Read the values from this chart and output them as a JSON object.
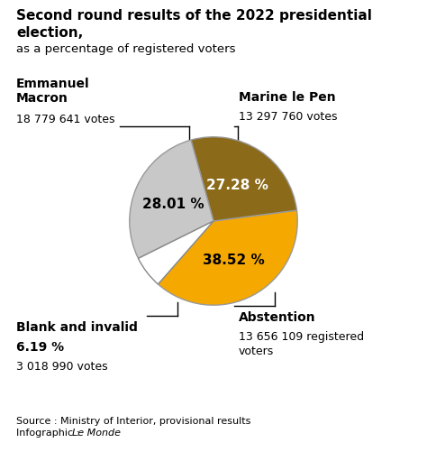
{
  "title_bold": "Second round results of the 2022 presidential\nelection,",
  "title_sub": "as a percentage of registered voters",
  "slices": [
    {
      "label": "Macron",
      "pct": 38.52,
      "color": "#F5A800",
      "text_color": "#000000"
    },
    {
      "label": "Le Pen",
      "pct": 27.28,
      "color": "#8B6A1A",
      "text_color": "#ffffff"
    },
    {
      "label": "Abstention",
      "pct": 28.01,
      "color": "#C8C8C8",
      "text_color": "#000000"
    },
    {
      "label": "Blank",
      "pct": 6.19,
      "color": "#ffffff",
      "text_color": "#000000"
    }
  ],
  "ann_macron_bold": "Emmanuel\nMacron",
  "ann_macron_sub": "18 779 641 votes",
  "ann_lepen_bold": "Marine le Pen",
  "ann_lepen_sub": "13 297 760 votes",
  "ann_abst_bold": "Abstention",
  "ann_abst_sub": "13 656 109 registered\nvoters",
  "ann_blank_bold": "Blank and invalid\n6.19 %",
  "ann_blank_sub": "3 018 990 votes",
  "source1": "Source : Ministry of Interior, provisional results",
  "source2_plain": "Infographic : ",
  "source2_italic": "Le Monde",
  "bg_color": "#ffffff",
  "edge_color": "#999999",
  "startangle": 90.0
}
